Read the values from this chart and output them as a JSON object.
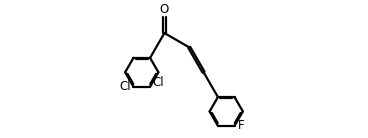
{
  "bg_color": "#ffffff",
  "line_color": "#000000",
  "line_width": 1.6,
  "label_fontsize": 8.5,
  "fig_width": 3.68,
  "fig_height": 1.38,
  "dpi": 100,
  "O_label": "O",
  "Cl1_label": "Cl",
  "Cl2_label": "Cl",
  "F_label": "F"
}
